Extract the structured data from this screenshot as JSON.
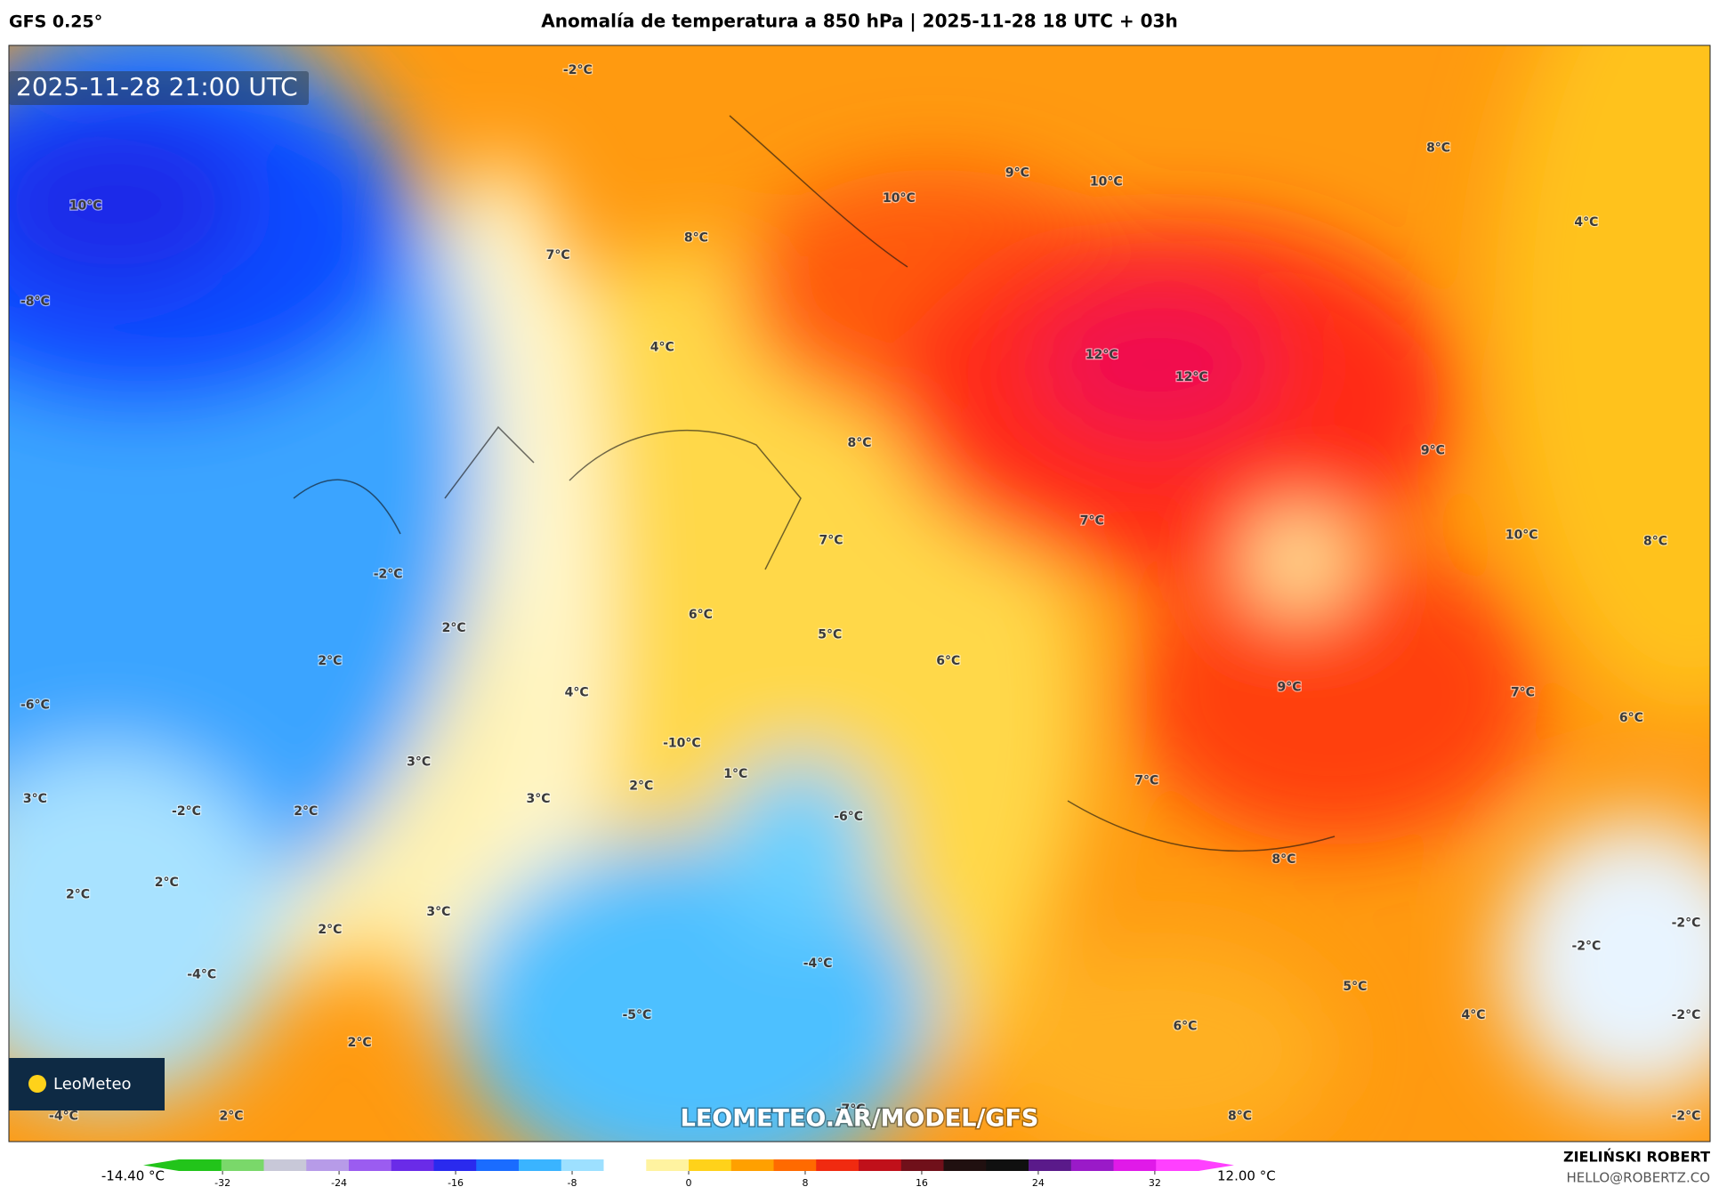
{
  "header": {
    "model": "GFS 0.25°",
    "title": "Anomalía de temperatura a 850 hPa | 2025-11-28 18 UTC + 03h"
  },
  "map": {
    "timestamp": "2025-11-28 21:00 UTC",
    "watermark": "LEOMETEO.AR/MODEL/GFS",
    "logo": "LeoMeteo",
    "labels": [
      "-2°C",
      "10°C",
      "-8°C",
      "7°C",
      "8°C",
      "10°C",
      "9°C",
      "10°C",
      "8°C",
      "4°C",
      "4°C",
      "12°C",
      "12°C",
      "8°C",
      "9°C",
      "7°C",
      "7°C",
      "10°C",
      "8°C",
      "-2°C",
      "2°C",
      "6°C",
      "5°C",
      "2°C",
      "6°C",
      "4°C",
      "9°C",
      "7°C",
      "-6°C",
      "6°C",
      "-10°C",
      "3°C",
      "1°C",
      "7°C",
      "3°C",
      "3°C",
      "2°C",
      "-2°C",
      "2°C",
      "-6°C",
      "8°C",
      "2°C",
      "2°C",
      "3°C",
      "2°C",
      "-2°C",
      "-2°C",
      "-4°C",
      "-4°C",
      "5°C",
      "-5°C",
      "4°C",
      "6°C",
      "-2°C",
      "2°C",
      "8°C",
      "2°C",
      "-4°C",
      "-7°C",
      "-2°C"
    ]
  },
  "colorbar": {
    "min_label": "-14.40 °C",
    "max_label": "12.00 °C",
    "lim": [
      -35,
      35
    ],
    "ticks": [
      -32,
      -24,
      -16,
      -8,
      0,
      8,
      16,
      24,
      32
    ],
    "colors": [
      "#22c41a",
      "#7ad86a",
      "#c8c8d8",
      "#b79be8",
      "#9b5cf0",
      "#6a2be8",
      "#2a2aee",
      "#1a6cff",
      "#3ab4ff",
      "#9de0ff",
      "#ffffff",
      "#fff3a0",
      "#ffd21a",
      "#ffa000",
      "#ff6a00",
      "#f02a10",
      "#c0101a",
      "#70101a",
      "#201010",
      "#101010",
      "#5a1a8a",
      "#9a1ac8",
      "#e01ae8",
      "#ff40ff"
    ]
  },
  "footer": {
    "author": "ZIELIŃSKI ROBERT",
    "email": "HELLO@ROBERTZ.CO"
  }
}
